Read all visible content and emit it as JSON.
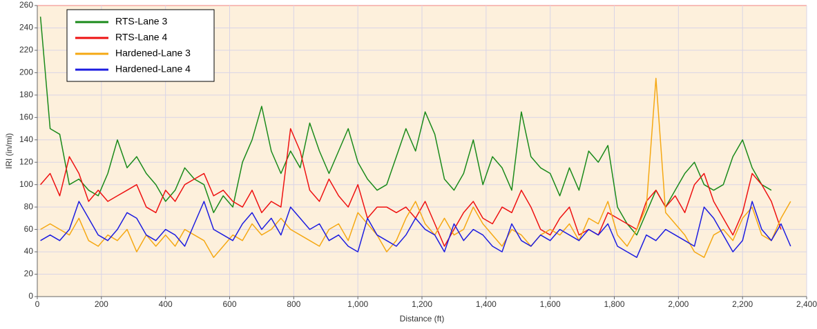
{
  "chart_data": {
    "type": "line",
    "xlabel": "Distance (ft)",
    "ylabel": "IRI (in/mi)",
    "x": [
      10,
      40,
      70,
      100,
      130,
      160,
      190,
      220,
      250,
      280,
      310,
      340,
      370,
      400,
      430,
      460,
      490,
      520,
      550,
      580,
      610,
      640,
      670,
      700,
      730,
      760,
      790,
      820,
      850,
      880,
      910,
      940,
      970,
      1000,
      1030,
      1060,
      1090,
      1120,
      1150,
      1180,
      1210,
      1240,
      1270,
      1300,
      1330,
      1360,
      1390,
      1420,
      1450,
      1480,
      1510,
      1540,
      1570,
      1600,
      1630,
      1660,
      1690,
      1720,
      1750,
      1780,
      1810,
      1840,
      1870,
      1900,
      1930,
      1960,
      1990,
      2020,
      2050,
      2080,
      2110,
      2140,
      2170,
      2200,
      2230,
      2260,
      2290,
      2320,
      2350
    ],
    "series": [
      {
        "name": "RTS-Lane 3",
        "color": "#1a8a1a",
        "values": [
          250,
          150,
          145,
          100,
          105,
          95,
          90,
          110,
          140,
          115,
          125,
          110,
          100,
          85,
          95,
          115,
          105,
          100,
          75,
          90,
          80,
          120,
          140,
          170,
          130,
          110,
          130,
          115,
          155,
          130,
          110,
          130,
          150,
          120,
          105,
          95,
          100,
          125,
          150,
          130,
          165,
          145,
          105,
          95,
          110,
          140,
          100,
          125,
          115,
          95,
          165,
          125,
          115,
          110,
          90,
          115,
          95,
          130,
          120,
          135,
          80,
          65,
          55,
          75,
          95,
          80,
          95,
          110,
          120,
          100,
          95,
          100,
          125,
          140,
          115,
          100,
          95,
          null,
          null
        ]
      },
      {
        "name": "RTS-Lane 4",
        "color": "#ee1111",
        "values": [
          100,
          110,
          90,
          125,
          110,
          85,
          95,
          85,
          90,
          95,
          100,
          80,
          75,
          95,
          85,
          100,
          105,
          110,
          90,
          95,
          85,
          80,
          95,
          75,
          85,
          80,
          150,
          130,
          95,
          85,
          105,
          90,
          80,
          100,
          70,
          80,
          80,
          75,
          80,
          70,
          85,
          65,
          45,
          60,
          75,
          85,
          70,
          65,
          80,
          75,
          95,
          80,
          60,
          55,
          70,
          80,
          55,
          60,
          55,
          75,
          70,
          65,
          60,
          85,
          95,
          80,
          90,
          75,
          100,
          110,
          85,
          70,
          55,
          75,
          110,
          100,
          85,
          60,
          null
        ]
      },
      {
        "name": "Hardened-Lane 3",
        "color": "#f5a813",
        "values": [
          60,
          65,
          60,
          55,
          70,
          50,
          45,
          55,
          50,
          60,
          40,
          55,
          45,
          55,
          45,
          60,
          55,
          50,
          35,
          45,
          55,
          50,
          65,
          55,
          60,
          70,
          60,
          55,
          50,
          45,
          60,
          65,
          50,
          75,
          65,
          55,
          40,
          50,
          70,
          85,
          65,
          55,
          70,
          55,
          60,
          80,
          65,
          55,
          45,
          60,
          55,
          45,
          55,
          60,
          55,
          65,
          50,
          70,
          65,
          85,
          55,
          45,
          60,
          80,
          195,
          75,
          65,
          55,
          40,
          35,
          55,
          60,
          50,
          70,
          80,
          55,
          50,
          70,
          85
        ]
      },
      {
        "name": "Hardened-Lane 4",
        "color": "#1c1ce0",
        "values": [
          50,
          55,
          50,
          60,
          85,
          70,
          55,
          50,
          60,
          75,
          70,
          55,
          50,
          60,
          55,
          45,
          65,
          85,
          60,
          55,
          50,
          65,
          75,
          60,
          70,
          55,
          80,
          70,
          60,
          65,
          50,
          55,
          45,
          40,
          70,
          55,
          50,
          45,
          55,
          70,
          60,
          55,
          40,
          65,
          50,
          60,
          55,
          45,
          40,
          65,
          50,
          45,
          55,
          50,
          60,
          55,
          50,
          60,
          55,
          65,
          45,
          40,
          35,
          55,
          50,
          60,
          55,
          50,
          45,
          80,
          70,
          55,
          40,
          50,
          85,
          60,
          50,
          65,
          45
        ]
      }
    ],
    "xlim": [
      0,
      2400
    ],
    "ylim": [
      0,
      260
    ],
    "xticks": [
      0,
      200,
      400,
      600,
      800,
      {
        "value": 1000,
        "label": "1,000"
      },
      {
        "value": 1200,
        "label": "1,200"
      },
      {
        "value": 1400,
        "label": "1,400"
      },
      {
        "value": 1600,
        "label": "1,600"
      },
      {
        "value": 1800,
        "label": "1,800"
      },
      {
        "value": 2000,
        "label": "2,000"
      },
      {
        "value": 2200,
        "label": "2,200"
      },
      {
        "value": 2400,
        "label": "2,400"
      }
    ],
    "yticks": [
      0,
      20,
      40,
      60,
      80,
      100,
      120,
      140,
      160,
      180,
      200,
      220,
      240,
      260
    ],
    "grid": true,
    "legend": "upper left",
    "background": "#fdf0dc"
  }
}
